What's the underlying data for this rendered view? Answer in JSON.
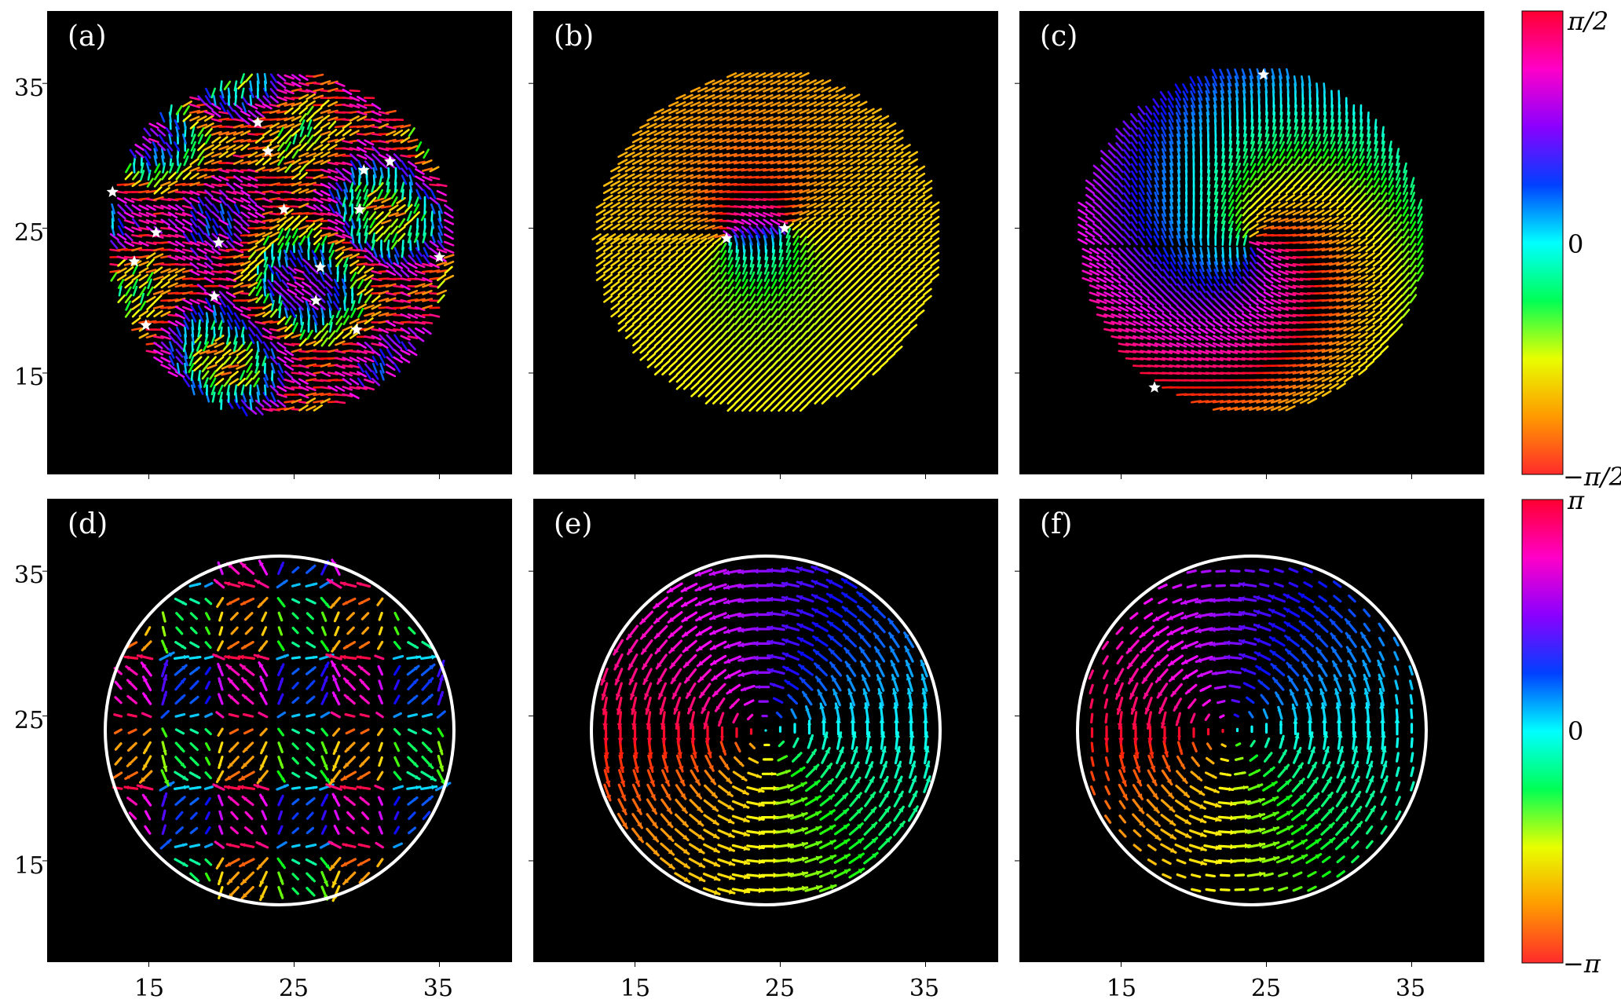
{
  "figure": {
    "axis_ticks": {
      "y_labels": [
        "35",
        "25",
        "15"
      ],
      "x_labels": [
        "15",
        "25",
        "35"
      ]
    },
    "colorbar_top": {
      "label_top": "π/2",
      "label_mid": "0",
      "label_bottom": "−π/2",
      "colors": [
        "#ff2b2b",
        "#ff9a00",
        "#e8ff00",
        "#00ff55",
        "#00ffff",
        "#0040ff",
        "#8a00ff",
        "#ff00c8",
        "#ff0030"
      ]
    },
    "colorbar_bottom": {
      "label_top": "π",
      "label_mid": "0",
      "label_bottom": "−π",
      "colors": [
        "#ff2b2b",
        "#ff9a00",
        "#e8ff00",
        "#00ff55",
        "#00ffff",
        "#0040ff",
        "#8a00ff",
        "#ff00c8",
        "#ff0030"
      ]
    }
  },
  "chart_data": [
    {
      "type": "scatter",
      "panel": "(a)",
      "description_kind": "quiver",
      "xlim": [
        8,
        40
      ],
      "ylim": [
        8,
        40
      ],
      "disk": {
        "center": [
          24,
          24
        ],
        "radius": 12
      },
      "field": "random",
      "stars": [
        [
          12.5,
          27.5
        ],
        [
          15.5,
          24.7
        ],
        [
          14,
          22.7
        ],
        [
          14.8,
          18.3
        ],
        [
          19.5,
          20.3
        ],
        [
          19.8,
          24
        ],
        [
          22.5,
          32.3
        ],
        [
          23.2,
          30.3
        ],
        [
          24.3,
          26.3
        ],
        [
          26.8,
          22.3
        ],
        [
          26.5,
          20
        ],
        [
          29.3,
          18
        ],
        [
          29.5,
          26.3
        ],
        [
          29.8,
          29
        ],
        [
          31.6,
          29.6
        ],
        [
          35,
          23
        ]
      ]
    },
    {
      "type": "scatter",
      "panel": "(b)",
      "description_kind": "quiver",
      "xlim": [
        8,
        40
      ],
      "ylim": [
        8,
        40
      ],
      "disk": {
        "center": [
          24,
          24
        ],
        "radius": 12
      },
      "field": "two-defects",
      "stars": [
        [
          21.3,
          24.3
        ],
        [
          25.3,
          25
        ]
      ]
    },
    {
      "type": "scatter",
      "panel": "(c)",
      "description_kind": "quiver",
      "xlim": [
        8,
        40
      ],
      "ylim": [
        8,
        40
      ],
      "disk": {
        "center": [
          24,
          24
        ],
        "radius": 12
      },
      "field": "twist",
      "stars": [
        [
          24.8,
          35.6
        ],
        [
          17.3,
          14
        ]
      ]
    },
    {
      "type": "scatter",
      "panel": "(d)",
      "description_kind": "quiver",
      "xlim": [
        8,
        40
      ],
      "ylim": [
        8,
        40
      ],
      "disk": {
        "center": [
          24,
          24
        ],
        "radius": 12
      },
      "field": "lattice",
      "stars": []
    },
    {
      "type": "scatter",
      "panel": "(e)",
      "description_kind": "quiver",
      "xlim": [
        8,
        40
      ],
      "ylim": [
        8,
        40
      ],
      "disk": {
        "center": [
          24,
          24
        ],
        "radius": 12
      },
      "field": "vortex",
      "stars": []
    },
    {
      "type": "scatter",
      "panel": "(f)",
      "description_kind": "quiver",
      "xlim": [
        8,
        40
      ],
      "ylim": [
        8,
        40
      ],
      "disk": {
        "center": [
          24,
          24
        ],
        "radius": 12
      },
      "field": "offset-vortex",
      "stars": []
    }
  ]
}
